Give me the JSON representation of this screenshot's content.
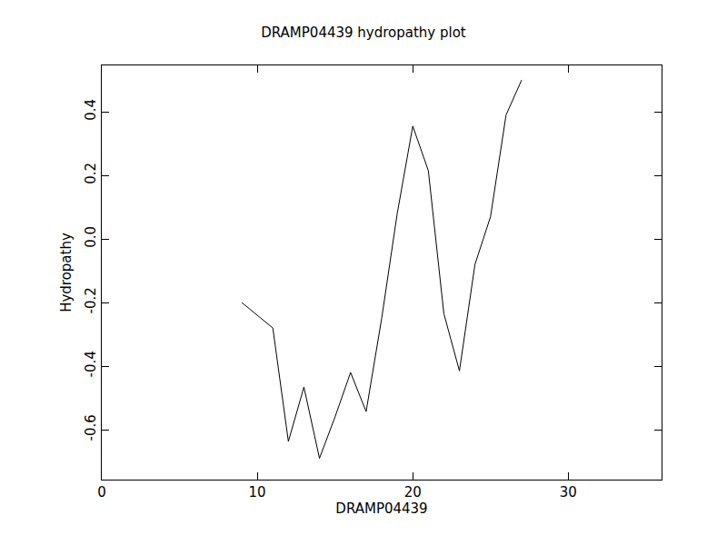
{
  "chart_data": {
    "type": "line",
    "title": "DRAMP04439 hydropathy plot",
    "x_label": "DRAMP04439",
    "y_label": "Hydropathy",
    "x": [
      9,
      10,
      11,
      12,
      13,
      14,
      15,
      16,
      17,
      18,
      19,
      20,
      21,
      22,
      23,
      24,
      25,
      26,
      27
    ],
    "values": [
      -0.2,
      -0.24,
      -0.28,
      -0.637,
      -0.466,
      -0.69,
      -0.56,
      -0.42,
      -0.543,
      -0.25,
      0.08,
      0.355,
      0.215,
      -0.235,
      -0.415,
      -0.08,
      0.07,
      0.39,
      0.5
    ],
    "color": "#000000",
    "xlim": [
      0,
      36
    ],
    "xticks": [
      0,
      10,
      20,
      30
    ],
    "ylim": [
      -0.757,
      0.546
    ],
    "yticks": [
      -0.6,
      -0.4,
      -0.2,
      {
        "value": 0,
        "label": "0.0"
      },
      0.2,
      0.4
    ],
    "grid": false
  }
}
